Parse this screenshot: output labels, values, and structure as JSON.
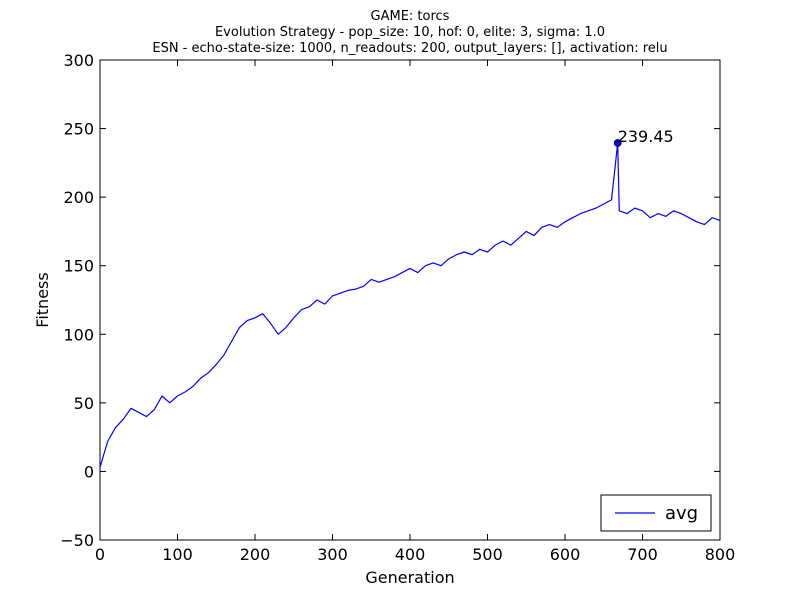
{
  "chart_data": {
    "type": "line",
    "title_lines": [
      "GAME: torcs",
      "Evolution Strategy - pop_size: 10, hof: 0, elite: 3, sigma: 1.0",
      "ESN - echo-state-size: 1000, n_readouts: 200, output_layers: [], activation: relu"
    ],
    "xlabel": "Generation",
    "ylabel": "Fitness",
    "xlim": [
      0,
      800
    ],
    "ylim": [
      -50,
      300
    ],
    "x_ticks": [
      0,
      100,
      200,
      300,
      400,
      500,
      600,
      700,
      800
    ],
    "y_ticks": [
      -50,
      0,
      50,
      100,
      150,
      200,
      250,
      300
    ],
    "grid": false,
    "legend_position": "lower right",
    "series": [
      {
        "name": "avg",
        "color": "#0000ff",
        "x": [
          0,
          10,
          20,
          30,
          40,
          50,
          60,
          70,
          80,
          90,
          100,
          110,
          120,
          130,
          140,
          150,
          160,
          170,
          180,
          190,
          200,
          210,
          220,
          230,
          240,
          250,
          260,
          270,
          280,
          290,
          300,
          310,
          320,
          330,
          340,
          350,
          360,
          370,
          380,
          390,
          400,
          410,
          420,
          430,
          440,
          450,
          460,
          470,
          480,
          490,
          500,
          510,
          520,
          530,
          540,
          550,
          560,
          570,
          580,
          590,
          600,
          610,
          620,
          630,
          640,
          650,
          660,
          668,
          670,
          680,
          690,
          700,
          710,
          720,
          730,
          740,
          750,
          760,
          770,
          780,
          790,
          800
        ],
        "y": [
          3,
          22,
          32,
          38,
          46,
          43,
          40,
          45,
          55,
          50,
          55,
          58,
          62,
          68,
          72,
          78,
          85,
          95,
          105,
          110,
          112,
          115,
          108,
          100,
          105,
          112,
          118,
          120,
          125,
          122,
          128,
          130,
          132,
          133,
          135,
          140,
          138,
          140,
          142,
          145,
          148,
          145,
          150,
          152,
          150,
          155,
          158,
          160,
          158,
          162,
          160,
          165,
          168,
          165,
          170,
          175,
          172,
          178,
          180,
          178,
          182,
          185,
          188,
          190,
          192,
          195,
          198,
          239.45,
          190,
          188,
          192,
          190,
          185,
          188,
          186,
          190,
          188,
          185,
          182,
          180,
          185,
          183
        ]
      }
    ],
    "annotation": {
      "x": 668,
      "y": 239.45,
      "label": "239.45"
    }
  }
}
